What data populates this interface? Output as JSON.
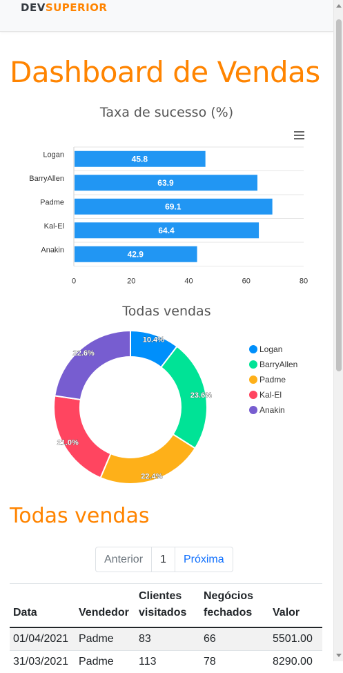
{
  "navbar": {
    "brand_dev": "DEV",
    "brand_superior": "SUPERIOR"
  },
  "page_title": "Dashboard de Vendas",
  "chart_data": [
    {
      "type": "bar",
      "orientation": "horizontal",
      "title": "Taxa de sucesso (%)",
      "categories": [
        "Logan",
        "BarryAllen",
        "Padme",
        "Kal-El",
        "Anakin"
      ],
      "values": [
        45.8,
        63.9,
        69.1,
        64.4,
        42.9
      ],
      "xlim": [
        0,
        80
      ],
      "xticks": [
        0,
        20,
        40,
        60,
        80
      ],
      "color": "#2196f3",
      "grid": true
    },
    {
      "type": "pie",
      "variant": "donut",
      "title": "Todas vendas",
      "labels": [
        "Logan",
        "BarryAllen",
        "Padme",
        "Kal-El",
        "Anakin"
      ],
      "values": [
        10.4,
        23.6,
        22.4,
        21.0,
        22.6
      ],
      "value_labels": [
        "10.4%",
        "23.6%",
        "22.4%",
        "21.0%",
        "22.6%"
      ],
      "colors": [
        "#008ffb",
        "#00e396",
        "#feb019",
        "#ff4560",
        "#775dd0"
      ],
      "legend": "right"
    }
  ],
  "sales_section": {
    "title": "Todas vendas",
    "pagination": {
      "prev": "Anterior",
      "page": "1",
      "next": "Próxima"
    },
    "table": {
      "headers": [
        "Data",
        "Vendedor",
        "Clientes visitados",
        "Negócios fechados",
        "Valor"
      ],
      "rows": [
        [
          "01/04/2021",
          "Padme",
          "83",
          "66",
          "5501.00"
        ],
        [
          "31/03/2021",
          "Padme",
          "113",
          "78",
          "8290.00"
        ]
      ]
    }
  }
}
